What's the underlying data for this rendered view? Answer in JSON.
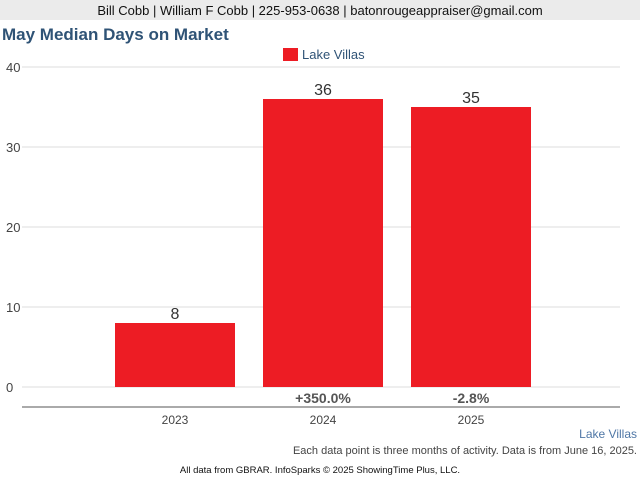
{
  "header": {
    "contact": "Bill Cobb | William F Cobb | 225-953-0638 | batonrougeappraiser@gmail.com"
  },
  "chart_data": {
    "type": "bar",
    "title": "May Median Days on Market",
    "categories": [
      "2023",
      "2024",
      "2025"
    ],
    "series": [
      {
        "name": "Lake Villas",
        "values": [
          8,
          36,
          35
        ],
        "color": "#ed1c24"
      }
    ],
    "data_labels": [
      "8",
      "36",
      "35"
    ],
    "change_labels": [
      "",
      "+350.0%",
      "-2.8%"
    ],
    "yticks": [
      0,
      10,
      20,
      30,
      40
    ],
    "ylim": [
      0,
      40
    ],
    "grid": true,
    "legend_position": "top-center",
    "xlabel": "",
    "ylabel": ""
  },
  "series_label": "Lake Villas",
  "note": "Each data point is three months of activity. Data is from June 16, 2025.",
  "footer": "All data from GBRAR. InfoSparks © 2025 ShowingTime Plus, LLC."
}
